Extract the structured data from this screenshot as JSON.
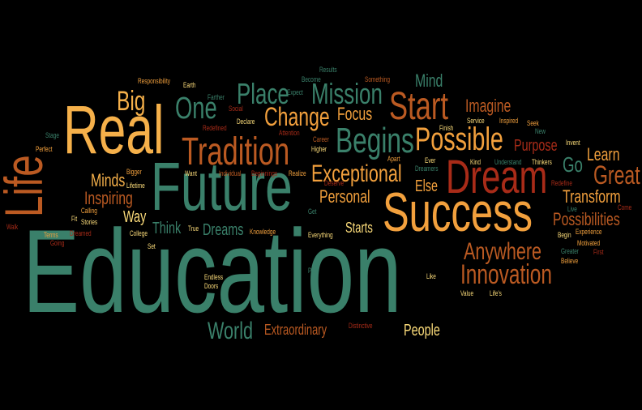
{
  "colors": {
    "background": "#000000",
    "green": "#3a806a",
    "orange": "#f2a03d",
    "light_orange": "#f5b04a",
    "yellow": "#fcdc7a",
    "rust": "#bb5a22",
    "red": "#a82b18",
    "tan": "#e08a38"
  },
  "words": [
    "Education",
    "Future",
    "Success",
    "Real",
    "Life",
    "Tradition",
    "Dream",
    "Start",
    "One",
    "Possible",
    "Begins",
    "Exceptional",
    "Mission",
    "Place",
    "Change",
    "Great",
    "Anywhere",
    "Innovation",
    "Big",
    "World",
    "Go",
    "Imagine",
    "Focus",
    "Mind",
    "Personal",
    "Transform",
    "Learn",
    "Possibilities",
    "Purpose",
    "People",
    "Minds",
    "Inspiring",
    "Else",
    "Think",
    "Way",
    "Dreams",
    "Extraordinary",
    "Starts",
    "Responsibility",
    "Results",
    "Earth",
    "Become",
    "Something",
    "Farther",
    "Expect",
    "Social",
    "Redefined",
    "Declare",
    "Attention",
    "Career",
    "Higher",
    "Stage",
    "Perfect",
    "Bigger",
    "Lifetime",
    "Want",
    "Individual",
    "Beginnings",
    "Realize",
    "Deserve",
    "Dreamers",
    "Ever",
    "Apart",
    "Kind",
    "Service",
    "Finish",
    "Inspired",
    "Seek",
    "New",
    "Invent",
    "Understand",
    "Thinkers",
    "Redefine",
    "Live",
    "Come",
    "Experience",
    "Calling",
    "Fit",
    "Stories",
    "Walk",
    "Terms",
    "Going",
    "Dreamed",
    "College",
    "Set",
    "True",
    "Knowledge",
    "Get",
    "Everything",
    "Begin",
    "Motivated",
    "Greater",
    "First",
    "Believe",
    "Endless",
    "Doors",
    "Path",
    "Distinctive",
    "Like",
    "Value",
    "Life's"
  ]
}
